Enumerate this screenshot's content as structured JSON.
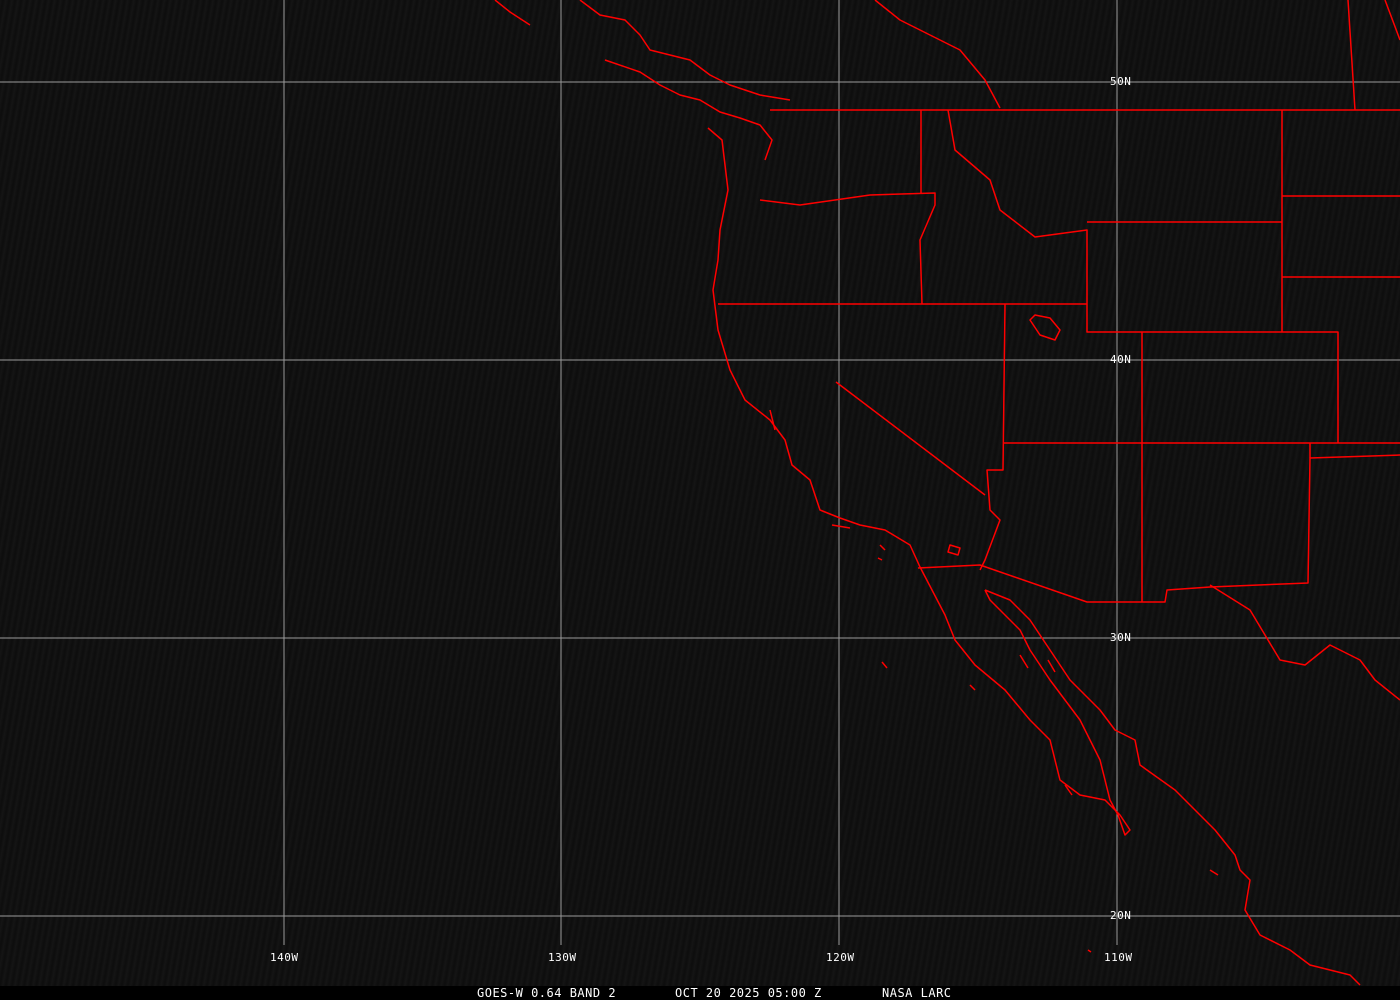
{
  "map": {
    "grid_color": "#9a9a9a",
    "boundary_color": "#ff0000",
    "lon_labels": [
      "140W",
      "130W",
      "120W",
      "110W"
    ],
    "lat_labels": [
      "50N",
      "40N",
      "30N",
      "20N"
    ]
  },
  "caption": {
    "product": "GOES-W 0.64 BAND 2",
    "datetime": "OCT 20 2025 05:00 Z",
    "source": "NASA LARC"
  }
}
